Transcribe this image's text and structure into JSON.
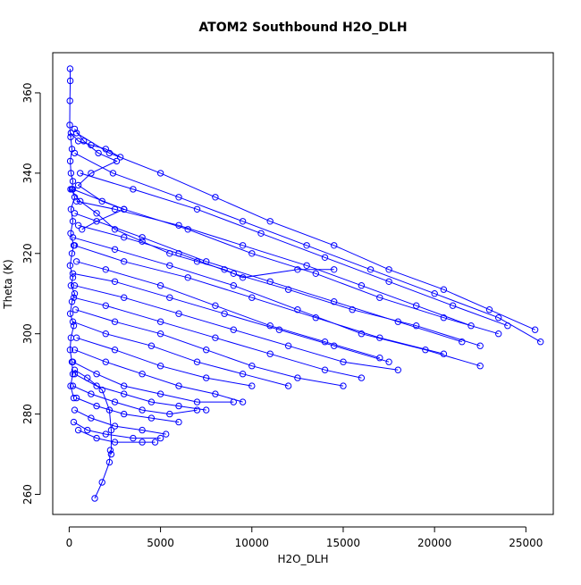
{
  "chart_data": {
    "type": "scatter",
    "title": "ATOM2 Southbound H2O_DLH",
    "xlabel": "H2O_DLH",
    "ylabel": "Theta (K)",
    "xlim": [
      -900,
      26500
    ],
    "ylim": [
      255,
      370
    ],
    "x_ticks": [
      0,
      5000,
      10000,
      15000,
      20000,
      25000
    ],
    "y_ticks": [
      260,
      280,
      300,
      320,
      340,
      360
    ],
    "color": "#0000ff",
    "grid": false,
    "legend": "none",
    "series": [
      {
        "values": [
          [
            50,
            366
          ],
          [
            60,
            363
          ],
          [
            40,
            358
          ],
          [
            30,
            352
          ],
          [
            80,
            349
          ],
          [
            150,
            346
          ],
          [
            60,
            343
          ],
          [
            100,
            340
          ],
          [
            200,
            338
          ],
          [
            150,
            336
          ],
          [
            300,
            334
          ],
          [
            100,
            331
          ],
          [
            200,
            328
          ],
          [
            80,
            325
          ],
          [
            250,
            322
          ],
          [
            150,
            320
          ],
          [
            50,
            317
          ],
          [
            200,
            314
          ],
          [
            100,
            312
          ],
          [
            300,
            310
          ],
          [
            150,
            308
          ],
          [
            60,
            305
          ],
          [
            250,
            302
          ],
          [
            100,
            299
          ],
          [
            50,
            296
          ],
          [
            150,
            293
          ],
          [
            200,
            290
          ],
          [
            80,
            287
          ],
          [
            250,
            284
          ]
        ]
      },
      {
        "values": [
          [
            300,
            351
          ],
          [
            800,
            348
          ],
          [
            1600,
            345
          ],
          [
            2600,
            343
          ],
          [
            1200,
            340
          ],
          [
            500,
            337
          ],
          [
            1800,
            333
          ],
          [
            3000,
            331
          ],
          [
            1500,
            328
          ],
          [
            700,
            326
          ]
        ]
      },
      {
        "values": [
          [
            400,
            350
          ],
          [
            2200,
            345
          ],
          [
            5000,
            340
          ],
          [
            8000,
            334
          ],
          [
            11000,
            328
          ],
          [
            14500,
            322
          ],
          [
            17500,
            316
          ],
          [
            20500,
            311
          ],
          [
            23000,
            306
          ],
          [
            25500,
            301
          ]
        ]
      },
      {
        "values": [
          [
            300,
            345
          ],
          [
            2400,
            340
          ],
          [
            6000,
            334
          ],
          [
            9500,
            328
          ],
          [
            13000,
            322
          ],
          [
            16500,
            316
          ],
          [
            20000,
            310
          ],
          [
            23500,
            304
          ],
          [
            25800,
            298
          ]
        ]
      },
      {
        "values": [
          [
            600,
            340
          ],
          [
            3500,
            336
          ],
          [
            7000,
            331
          ],
          [
            10500,
            325
          ],
          [
            14000,
            319
          ],
          [
            17500,
            313
          ],
          [
            21000,
            307
          ],
          [
            24000,
            302
          ]
        ]
      },
      {
        "values": [
          [
            200,
            336
          ],
          [
            3000,
            331
          ],
          [
            6500,
            326
          ],
          [
            10000,
            320
          ],
          [
            13500,
            315
          ],
          [
            17000,
            309
          ],
          [
            20500,
            304
          ],
          [
            23500,
            300
          ]
        ]
      },
      {
        "values": [
          [
            400,
            333
          ],
          [
            2500,
            331
          ],
          [
            6000,
            327
          ],
          [
            9500,
            322
          ],
          [
            13000,
            317
          ],
          [
            16000,
            312
          ],
          [
            19000,
            307
          ],
          [
            22000,
            302
          ]
        ]
      },
      {
        "values": [
          [
            300,
            330
          ],
          [
            4000,
            324
          ],
          [
            7500,
            318
          ],
          [
            11000,
            313
          ],
          [
            14500,
            308
          ],
          [
            18000,
            303
          ],
          [
            21500,
            298
          ]
        ]
      },
      {
        "values": [
          [
            500,
            327
          ],
          [
            3000,
            324
          ],
          [
            6000,
            320
          ],
          [
            9000,
            315
          ],
          [
            12000,
            311
          ],
          [
            15500,
            306
          ],
          [
            19000,
            302
          ],
          [
            22500,
            297
          ]
        ]
      },
      {
        "values": [
          [
            200,
            324
          ],
          [
            2500,
            321
          ],
          [
            5500,
            317
          ],
          [
            9000,
            312
          ],
          [
            12500,
            306
          ],
          [
            16000,
            300
          ],
          [
            19500,
            296
          ],
          [
            22500,
            292
          ]
        ]
      },
      {
        "values": [
          [
            300,
            322
          ],
          [
            3000,
            318
          ],
          [
            6500,
            314
          ],
          [
            10000,
            309
          ],
          [
            13500,
            304
          ],
          [
            17000,
            299
          ],
          [
            20500,
            295
          ]
        ]
      },
      {
        "values": [
          [
            400,
            318
          ],
          [
            2000,
            316
          ],
          [
            5000,
            312
          ],
          [
            8000,
            307
          ],
          [
            11000,
            302
          ],
          [
            14000,
            298
          ],
          [
            17000,
            294
          ]
        ]
      },
      {
        "values": [
          [
            200,
            315
          ],
          [
            2500,
            313
          ],
          [
            5500,
            309
          ],
          [
            8500,
            305
          ],
          [
            11500,
            301
          ],
          [
            14500,
            297
          ],
          [
            17500,
            293
          ]
        ]
      },
      {
        "values": [
          [
            300,
            312
          ],
          [
            3000,
            309
          ],
          [
            6000,
            305
          ],
          [
            9000,
            301
          ],
          [
            12000,
            297
          ],
          [
            15000,
            293
          ],
          [
            18000,
            291
          ]
        ]
      },
      {
        "values": [
          [
            250,
            309
          ],
          [
            2000,
            307
          ],
          [
            5000,
            303
          ],
          [
            8000,
            299
          ],
          [
            11000,
            295
          ],
          [
            14000,
            291
          ],
          [
            16000,
            289
          ]
        ]
      },
      {
        "values": [
          [
            350,
            306
          ],
          [
            2500,
            303
          ],
          [
            5000,
            300
          ],
          [
            7500,
            296
          ],
          [
            10000,
            292
          ],
          [
            12500,
            289
          ],
          [
            15000,
            287
          ]
        ]
      },
      {
        "values": [
          [
            200,
            303
          ],
          [
            2000,
            300
          ],
          [
            4500,
            297
          ],
          [
            7000,
            293
          ],
          [
            9500,
            290
          ],
          [
            12000,
            287
          ]
        ]
      },
      {
        "values": [
          [
            400,
            299
          ],
          [
            2500,
            296
          ],
          [
            5000,
            292
          ],
          [
            7500,
            289
          ],
          [
            10000,
            287
          ]
        ]
      },
      {
        "values": [
          [
            300,
            296
          ],
          [
            2000,
            293
          ],
          [
            4000,
            290
          ],
          [
            6000,
            287
          ],
          [
            8000,
            285
          ],
          [
            9500,
            283
          ]
        ]
      },
      {
        "values": [
          [
            200,
            293
          ],
          [
            1500,
            290
          ],
          [
            3000,
            287
          ],
          [
            5000,
            285
          ],
          [
            7000,
            283
          ],
          [
            9000,
            283
          ]
        ]
      },
      {
        "values": [
          [
            300,
            290
          ],
          [
            1500,
            287
          ],
          [
            3000,
            285
          ],
          [
            4500,
            283
          ],
          [
            6000,
            282
          ],
          [
            7500,
            281
          ]
        ]
      },
      {
        "values": [
          [
            200,
            287
          ],
          [
            1200,
            285
          ],
          [
            2500,
            283
          ],
          [
            4000,
            281
          ],
          [
            5500,
            280
          ],
          [
            7000,
            281
          ]
        ]
      },
      {
        "values": [
          [
            400,
            284
          ],
          [
            1500,
            282
          ],
          [
            3000,
            280
          ],
          [
            4500,
            279
          ],
          [
            6000,
            278
          ]
        ]
      },
      {
        "values": [
          [
            300,
            281
          ],
          [
            1200,
            279
          ],
          [
            2500,
            277
          ],
          [
            4000,
            276
          ],
          [
            5300,
            275
          ]
        ]
      },
      {
        "values": [
          [
            250,
            278
          ],
          [
            1000,
            276
          ],
          [
            2000,
            275
          ],
          [
            3500,
            274
          ],
          [
            5000,
            274
          ]
        ]
      },
      {
        "values": [
          [
            500,
            276
          ],
          [
            1500,
            274
          ],
          [
            2500,
            273
          ],
          [
            4000,
            273
          ],
          [
            4700,
            273
          ]
        ]
      },
      {
        "values": [
          [
            300,
            291
          ],
          [
            1000,
            289
          ],
          [
            1800,
            286
          ],
          [
            2200,
            281
          ],
          [
            2300,
            276
          ],
          [
            2300,
            270
          ]
        ]
      },
      {
        "values": [
          [
            1400,
            259
          ],
          [
            1800,
            263
          ],
          [
            2200,
            268
          ],
          [
            2250,
            271
          ]
        ]
      },
      {
        "values": [
          [
            100,
            350
          ],
          [
            500,
            348
          ],
          [
            1200,
            347
          ],
          [
            2000,
            346
          ],
          [
            2800,
            344
          ]
        ]
      },
      {
        "values": [
          [
            80,
            336
          ],
          [
            600,
            333
          ],
          [
            1500,
            330
          ],
          [
            2500,
            326
          ],
          [
            4000,
            323
          ],
          [
            5500,
            320
          ],
          [
            7000,
            318
          ],
          [
            8500,
            316
          ],
          [
            9500,
            314
          ],
          [
            12500,
            316
          ],
          [
            14500,
            316
          ]
        ]
      }
    ]
  }
}
